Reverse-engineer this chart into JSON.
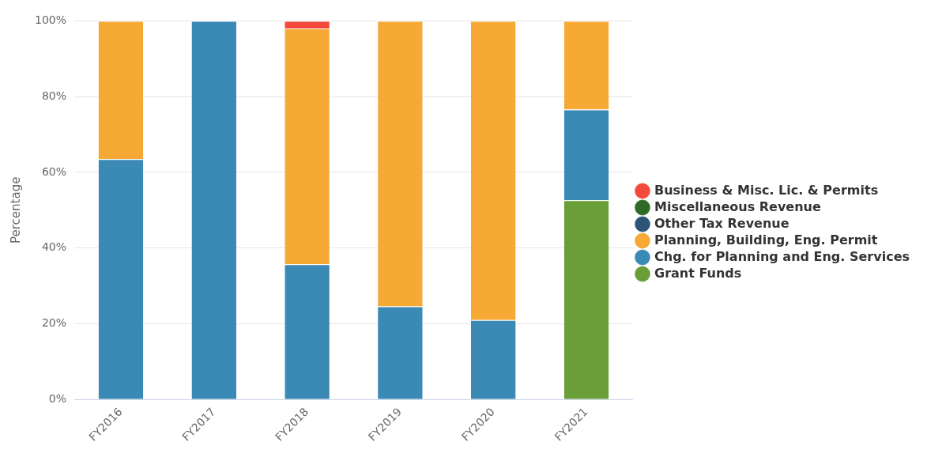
{
  "chart_data": {
    "type": "bar",
    "stacked": true,
    "ylabel": "Percentage",
    "categories": [
      "FY2016",
      "FY2017",
      "FY2018",
      "FY2019",
      "FY2020",
      "FY2021"
    ],
    "series": [
      {
        "name": "Grant Funds",
        "color": "#6a9e38",
        "values": [
          0,
          0,
          0,
          0,
          0,
          52.6
        ]
      },
      {
        "name": "Chg. for Planning and Eng. Services",
        "color": "#3b89b5",
        "values": [
          63.5,
          100,
          35.7,
          24.6,
          21.0,
          24.0
        ]
      },
      {
        "name": "Planning, Building, Eng. Permit",
        "color": "#f7a935",
        "values": [
          36.5,
          0,
          62.3,
          75.4,
          79.0,
          23.4
        ]
      },
      {
        "name": "Other Tax Revenue",
        "color": "#2c5478",
        "values": [
          0,
          0,
          0,
          0,
          0,
          0
        ]
      },
      {
        "name": "Miscellaneous Revenue",
        "color": "#2f6b26",
        "values": [
          0,
          0,
          0,
          0,
          0,
          0
        ]
      },
      {
        "name": "Business & Misc. Lic. & Permits",
        "color": "#f44a3c",
        "values": [
          0,
          0,
          2.0,
          0,
          0,
          0
        ]
      }
    ],
    "ylim": [
      0,
      100
    ],
    "yticks": [
      {
        "value": 0,
        "label": "0%"
      },
      {
        "value": 20,
        "label": "20%"
      },
      {
        "value": 40,
        "label": "40%"
      },
      {
        "value": 60,
        "label": "60%"
      },
      {
        "value": 80,
        "label": "80%"
      },
      {
        "value": 100,
        "label": "100%"
      }
    ],
    "grid": "y",
    "legend": "right"
  }
}
